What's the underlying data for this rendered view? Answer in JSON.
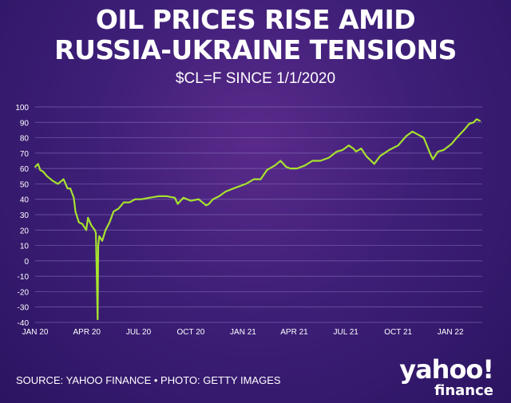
{
  "header": {
    "title_line1": "OIL PRICES RISE AMID",
    "title_line2": "RUSSIA-UKRAINE TENSIONS",
    "subtitle": "$CL=F SINCE 1/1/2020"
  },
  "footer": {
    "source": "SOURCE: YAHOO FINANCE • PHOTO: GETTY IMAGES",
    "logo_main": "yahoo!",
    "logo_sub": "finance"
  },
  "colors": {
    "line": "#a6e22e",
    "grid": "#8a74c0",
    "text": "#ffffff"
  },
  "chart_data": {
    "type": "line",
    "title": "$CL=F SINCE 1/1/2020",
    "xlabel": "",
    "ylabel": "",
    "ylim": [
      -40,
      100
    ],
    "yticks": [
      100,
      90,
      80,
      70,
      60,
      50,
      40,
      30,
      20,
      10,
      0,
      -10,
      -20,
      -30,
      -40
    ],
    "xticks": [
      "JAN 20",
      "APR 20",
      "JUL 20",
      "OCT 20",
      "JAN 21",
      "APR 21",
      "JUL 21",
      "OCT 21",
      "JAN 22"
    ],
    "xtick_dates": [
      "2020-01-01",
      "2020-04-01",
      "2020-07-01",
      "2020-10-01",
      "2021-01-01",
      "2021-04-01",
      "2021-07-01",
      "2021-10-01",
      "2022-01-01"
    ],
    "grid": true,
    "legend": "none",
    "series": [
      {
        "x": [
          "2020-01-01",
          "2020-01-06",
          "2020-01-10",
          "2020-01-15",
          "2020-01-22",
          "2020-02-01",
          "2020-02-10",
          "2020-02-20",
          "2020-02-27",
          "2020-03-03",
          "2020-03-09",
          "2020-03-12",
          "2020-03-18",
          "2020-03-24",
          "2020-03-31",
          "2020-04-03",
          "2020-04-09",
          "2020-04-15",
          "2020-04-17",
          "2020-04-20",
          "2020-04-21",
          "2020-04-23",
          "2020-04-28",
          "2020-05-04",
          "2020-05-11",
          "2020-05-18",
          "2020-05-27",
          "2020-06-05",
          "2020-06-15",
          "2020-06-25",
          "2020-07-06",
          "2020-07-20",
          "2020-08-05",
          "2020-08-20",
          "2020-09-03",
          "2020-09-08",
          "2020-09-18",
          "2020-10-01",
          "2020-10-15",
          "2020-10-28",
          "2020-11-02",
          "2020-11-09",
          "2020-11-20",
          "2020-12-01",
          "2020-12-15",
          "2021-01-06",
          "2021-01-20",
          "2021-02-01",
          "2021-02-12",
          "2021-02-26",
          "2021-03-08",
          "2021-03-18",
          "2021-03-25",
          "2021-04-06",
          "2021-04-20",
          "2021-05-03",
          "2021-05-17",
          "2021-06-01",
          "2021-06-15",
          "2021-06-25",
          "2021-07-06",
          "2021-07-14",
          "2021-07-19",
          "2021-07-28",
          "2021-08-06",
          "2021-08-20",
          "2021-08-30",
          "2021-09-15",
          "2021-10-01",
          "2021-10-15",
          "2021-10-26",
          "2021-11-05",
          "2021-11-15",
          "2021-11-26",
          "2021-12-01",
          "2021-12-10",
          "2021-12-20",
          "2022-01-03",
          "2022-01-12",
          "2022-01-25",
          "2022-02-03",
          "2022-02-11",
          "2022-02-16",
          "2022-02-22"
        ],
        "y": [
          61,
          63,
          59,
          58,
          55,
          52,
          50,
          53,
          47,
          47,
          41,
          32,
          25,
          24,
          20,
          28,
          23,
          20,
          18,
          -38,
          10,
          16,
          13,
          20,
          25,
          32,
          34,
          38,
          38,
          40,
          40,
          41,
          42,
          42,
          41,
          37,
          41,
          39,
          40,
          36,
          37,
          40,
          42,
          45,
          47,
          50,
          53,
          53,
          59,
          62,
          65,
          61,
          60,
          60,
          62,
          65,
          65,
          67,
          71,
          72,
          75,
          73,
          71,
          73,
          68,
          63,
          68,
          72,
          75,
          81,
          84,
          82,
          80,
          70,
          66,
          71,
          72,
          76,
          80,
          85,
          89,
          90,
          92,
          91
        ]
      }
    ]
  }
}
